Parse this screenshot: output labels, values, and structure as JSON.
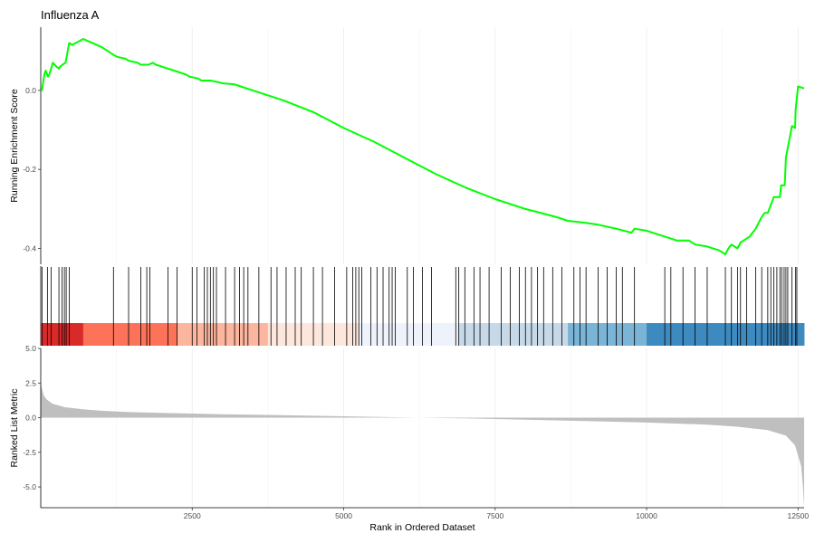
{
  "chart_data": {
    "type": "line",
    "title": "Influenza A",
    "xlabel": "Rank in Ordered Dataset",
    "xlim": [
      0,
      12600
    ],
    "x_ticks": [
      2500,
      5000,
      7500,
      10000,
      12500
    ],
    "x_tick_labels": [
      "2500",
      "5000",
      "7500",
      "10000",
      "12500"
    ],
    "grid": true,
    "colors": {
      "curve": "#00ff00",
      "metric_fill": "#bfbfbf",
      "hit_line": "#000000",
      "band": [
        "#d92a2a",
        "#fc7359",
        "#fcb59e",
        "#fde6dc",
        "#eef3fb",
        "#c6d9e8",
        "#7ab4d6",
        "#3d8ac1"
      ]
    },
    "panels": {
      "enrichment": {
        "ylabel": "Running Enrichment Score",
        "ylim": [
          -0.44,
          0.16
        ],
        "y_ticks": [
          0.0,
          -0.2,
          -0.4
        ],
        "y_tick_labels": [
          "0.0",
          "-0.2",
          "-0.4"
        ],
        "series": [
          {
            "x": [
              0,
              20,
              60,
              80,
              120,
              140,
              200,
              260,
              300,
              320,
              360,
              410,
              470,
              520,
              700,
              1000,
              1200,
              1260,
              1400,
              1450,
              1600,
              1650,
              1780,
              1850,
              1900,
              2000,
              2200,
              2400,
              2450,
              2600,
              2650,
              2800,
              2900,
              3000,
              3200,
              3300,
              3500,
              3800,
              4000,
              4500,
              5000,
              5500,
              6000,
              6500,
              7000,
              7500,
              8000,
              8500,
              8700,
              9000,
              9200,
              9500,
              9750,
              9800,
              10000,
              10200,
              10400,
              10500,
              10700,
              10800,
              11000,
              11200,
              11300,
              11350,
              11400,
              11500,
              11550,
              11600,
              11700,
              11800,
              11900,
              11950,
              12000,
              12100,
              12200,
              12220,
              12280,
              12300,
              12400,
              12450,
              12460,
              12500,
              12600
            ],
            "y": [
              0.0,
              0.0,
              0.04,
              0.05,
              0.035,
              0.04,
              0.07,
              0.06,
              0.055,
              0.06,
              0.065,
              0.07,
              0.12,
              0.115,
              0.13,
              0.11,
              0.09,
              0.085,
              0.08,
              0.075,
              0.07,
              0.065,
              0.065,
              0.07,
              0.065,
              0.06,
              0.05,
              0.04,
              0.035,
              0.03,
              0.025,
              0.025,
              0.022,
              0.018,
              0.015,
              0.01,
              0.0,
              -0.015,
              -0.025,
              -0.055,
              -0.095,
              -0.13,
              -0.17,
              -0.21,
              -0.245,
              -0.275,
              -0.3,
              -0.32,
              -0.33,
              -0.335,
              -0.34,
              -0.35,
              -0.36,
              -0.35,
              -0.355,
              -0.365,
              -0.375,
              -0.38,
              -0.38,
              -0.39,
              -0.395,
              -0.405,
              -0.415,
              -0.4,
              -0.39,
              -0.4,
              -0.385,
              -0.38,
              -0.37,
              -0.35,
              -0.32,
              -0.31,
              -0.31,
              -0.27,
              -0.27,
              -0.24,
              -0.24,
              -0.17,
              -0.09,
              -0.095,
              -0.05,
              0.01,
              0.005
            ]
          }
        ]
      },
      "hits": {
        "positions": [
          20,
          110,
          170,
          300,
          350,
          390,
          420,
          470,
          1200,
          1450,
          1650,
          1750,
          1800,
          2100,
          2250,
          2500,
          2580,
          2700,
          2750,
          2800,
          2850,
          2900,
          3050,
          3200,
          3280,
          3350,
          3420,
          3600,
          3800,
          3900,
          4050,
          4200,
          4300,
          4500,
          4650,
          4850,
          5050,
          5150,
          5200,
          5250,
          5300,
          5450,
          5550,
          5650,
          5750,
          5800,
          5850,
          6050,
          6150,
          6300,
          6450,
          6850,
          6900,
          7000,
          7150,
          7250,
          7400,
          7600,
          7750,
          7900,
          8000,
          8100,
          8200,
          8300,
          8450,
          8600,
          8800,
          8900,
          9000,
          9200,
          9350,
          9500,
          9600,
          9800,
          10300,
          10400,
          10600,
          10800,
          11000,
          11300,
          11400,
          11500,
          11550,
          11650,
          11800,
          11900,
          12000,
          12050,
          12100,
          12150,
          12200,
          12230,
          12270,
          12300,
          12330,
          12400,
          12460,
          12480
        ]
      },
      "band": {
        "breaks": [
          0,
          700,
          2250,
          3750,
          5250,
          6900,
          8700,
          10000,
          12600
        ]
      },
      "metric": {
        "ylabel": "Ranked List Metric",
        "ylim": [
          -6.5,
          5.0
        ],
        "y_ticks": [
          5.0,
          2.5,
          0.0,
          -2.5,
          -5.0
        ],
        "y_tick_labels": [
          "5.0",
          "2.5",
          "0.0",
          "-2.5",
          "-5.0"
        ],
        "x": [
          0,
          20,
          50,
          100,
          200,
          400,
          700,
          1000,
          1500,
          2000,
          3000,
          4000,
          5000,
          6000,
          6200,
          7000,
          8000,
          9000,
          10000,
          11000,
          11500,
          12000,
          12300,
          12450,
          12550,
          12580,
          12600
        ],
        "values": [
          2.5,
          2.1,
          1.6,
          1.3,
          1.0,
          0.75,
          0.6,
          0.5,
          0.4,
          0.35,
          0.25,
          0.18,
          0.1,
          0.02,
          0.0,
          -0.05,
          -0.15,
          -0.25,
          -0.35,
          -0.5,
          -0.65,
          -0.9,
          -1.3,
          -2.0,
          -3.5,
          -5.0,
          -6.5
        ]
      }
    }
  }
}
